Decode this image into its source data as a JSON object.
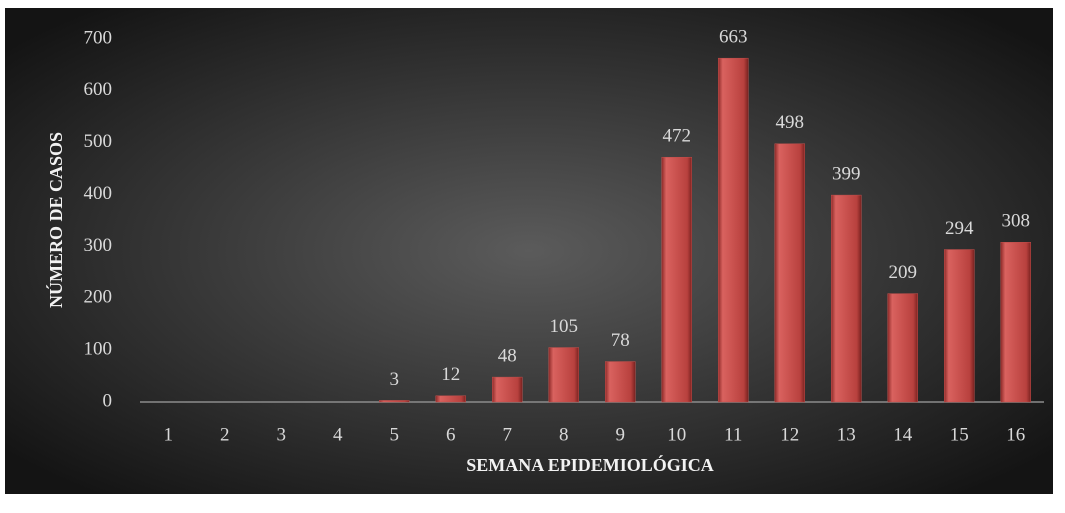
{
  "chart_data": {
    "type": "bar",
    "categories": [
      "1",
      "2",
      "3",
      "4",
      "5",
      "6",
      "7",
      "8",
      "9",
      "10",
      "11",
      "12",
      "13",
      "14",
      "15",
      "16"
    ],
    "values": [
      null,
      null,
      null,
      null,
      3,
      12,
      48,
      105,
      78,
      472,
      663,
      498,
      399,
      209,
      294,
      308
    ],
    "color": "#c0504d",
    "x_label": "SEMANA EPIDEMIOLÓGICA",
    "y_label": "NÚMERO DE CASOS",
    "ylim": [
      0,
      700
    ],
    "yticks": [
      0,
      100,
      200,
      300,
      400,
      500,
      600,
      700
    ],
    "grid": false
  }
}
